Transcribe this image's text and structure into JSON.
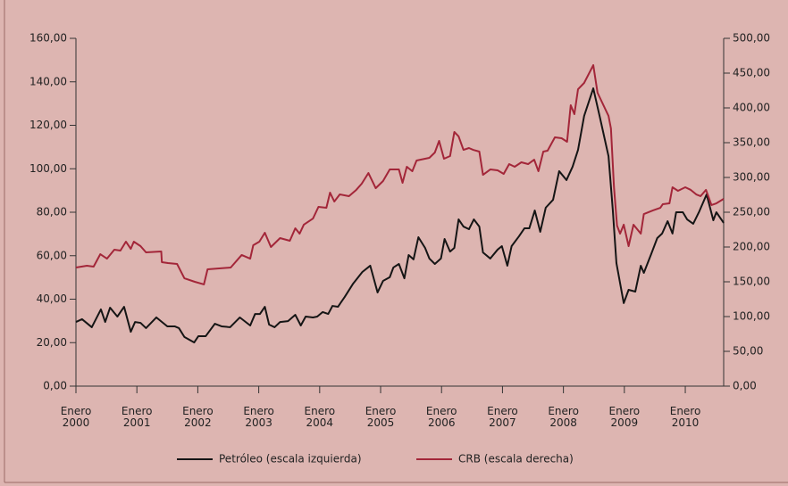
{
  "chart_data": {
    "type": "line",
    "xlim": [
      2000,
      2010.63
    ],
    "xticks": [
      {
        "value": 2000,
        "label": "Enero 2000"
      },
      {
        "value": 2001,
        "label": "Enero 2001"
      },
      {
        "value": 2002,
        "label": "Enero 2002"
      },
      {
        "value": 2003,
        "label": "Enero 2003"
      },
      {
        "value": 2004,
        "label": "Enero 2004"
      },
      {
        "value": 2005,
        "label": "Enero 2005"
      },
      {
        "value": 2006,
        "label": "Enero 2006"
      },
      {
        "value": 2007,
        "label": "Enero 2007"
      },
      {
        "value": 2008,
        "label": "Enero 2008"
      },
      {
        "value": 2009,
        "label": "Enero 2009"
      },
      {
        "value": 2010,
        "label": "Enero 2010"
      }
    ],
    "ylim": [
      0,
      160
    ],
    "yticks": [
      {
        "value": 0,
        "label": "0,00"
      },
      {
        "value": 20,
        "label": "20,00"
      },
      {
        "value": 40,
        "label": "40,00"
      },
      {
        "value": 60,
        "label": "60,00"
      },
      {
        "value": 80,
        "label": "80,00"
      },
      {
        "value": 100,
        "label": "100,00"
      },
      {
        "value": 120,
        "label": "120,00"
      },
      {
        "value": 140,
        "label": "140,00"
      },
      {
        "value": 160,
        "label": "160,00"
      }
    ],
    "y2lim": [
      0,
      500
    ],
    "y2ticks": [
      {
        "value": 0,
        "label": "0,00"
      },
      {
        "value": 50,
        "label": "50,00"
      },
      {
        "value": 100,
        "label": "100,00"
      },
      {
        "value": 150,
        "label": "150,00"
      },
      {
        "value": 200,
        "label": "200,00"
      },
      {
        "value": 250,
        "label": "250,00"
      },
      {
        "value": 300,
        "label": "300,00"
      },
      {
        "value": 350,
        "label": "350,00"
      },
      {
        "value": 400,
        "label": "400,00"
      },
      {
        "value": 450,
        "label": "450,00"
      },
      {
        "value": 500,
        "label": "500,00"
      }
    ],
    "legend": "bottom",
    "series": [
      {
        "name": "Petróleo (escala izquierda)",
        "color": "#151515",
        "axis": "y",
        "x": [
          2000.0,
          2000.1,
          2000.26,
          2000.41,
          2000.48,
          2000.56,
          2000.68,
          2000.79,
          2000.9,
          2000.97,
          2001.06,
          2001.15,
          2001.32,
          2001.5,
          2001.62,
          2001.69,
          2001.78,
          2001.94,
          2002.01,
          2002.13,
          2002.28,
          2002.39,
          2002.53,
          2002.69,
          2002.86,
          2002.94,
          2003.02,
          2003.1,
          2003.17,
          2003.26,
          2003.35,
          2003.48,
          2003.6,
          2003.69,
          2003.77,
          2003.89,
          2003.96,
          2004.05,
          2004.14,
          2004.21,
          2004.3,
          2004.41,
          2004.55,
          2004.7,
          2004.83,
          2004.95,
          2005.04,
          2005.15,
          2005.21,
          2005.3,
          2005.39,
          2005.46,
          2005.54,
          2005.62,
          2005.73,
          2005.8,
          2005.89,
          2005.99,
          2006.05,
          2006.14,
          2006.21,
          2006.28,
          2006.36,
          2006.45,
          2006.53,
          2006.62,
          2006.68,
          2006.8,
          2006.92,
          2006.99,
          2007.08,
          2007.15,
          2007.27,
          2007.36,
          2007.44,
          2007.53,
          2007.62,
          2007.71,
          2007.83,
          2007.93,
          2008.05,
          2008.15,
          2008.24,
          2008.34,
          2008.49,
          2008.6,
          2008.74,
          2008.81,
          2008.87,
          2008.99,
          2009.07,
          2009.18,
          2009.27,
          2009.32,
          2009.44,
          2009.54,
          2009.62,
          2009.71,
          2009.79,
          2009.85,
          2009.96,
          2010.03,
          2010.13,
          2010.23,
          2010.35,
          2010.46,
          2010.51,
          2010.63
        ],
        "values": [
          29.5,
          30.8,
          27.1,
          35.3,
          29.5,
          36.1,
          32.0,
          36.5,
          25.0,
          29.5,
          29.1,
          26.7,
          31.6,
          27.5,
          27.5,
          26.7,
          22.6,
          20.1,
          23.0,
          23.0,
          28.7,
          27.5,
          27.1,
          31.6,
          27.9,
          33.2,
          33.2,
          36.5,
          28.3,
          27.1,
          29.5,
          29.9,
          32.8,
          27.9,
          32.0,
          31.6,
          32.0,
          34.1,
          33.2,
          36.9,
          36.5,
          41.0,
          47.2,
          52.5,
          55.4,
          43.1,
          48.4,
          50.1,
          54.6,
          56.2,
          49.6,
          60.3,
          58.3,
          68.5,
          63.6,
          58.7,
          56.2,
          58.7,
          67.7,
          61.9,
          63.6,
          76.7,
          73.4,
          72.2,
          76.7,
          73.4,
          61.5,
          58.7,
          62.8,
          64.4,
          55.4,
          64.4,
          68.9,
          72.6,
          72.6,
          80.8,
          71.0,
          82.1,
          85.7,
          98.9,
          94.8,
          100.9,
          108.7,
          124.3,
          137.0,
          123.5,
          105.8,
          81.2,
          56.6,
          38.2,
          44.3,
          43.5,
          55.4,
          52.1,
          60.7,
          68.1,
          70.2,
          75.9,
          70.2,
          80.0,
          80.0,
          76.7,
          74.7,
          80.4,
          88.2,
          76.3,
          80.0,
          75.1
        ]
      },
      {
        "name": "CRB (escala derecha)",
        "color": "#a32639",
        "axis": "y2",
        "x": [
          2000.0,
          2000.18,
          2000.29,
          2000.4,
          2000.51,
          2000.63,
          2000.73,
          2000.82,
          2000.9,
          2000.95,
          2001.06,
          2001.15,
          2001.4,
          2001.41,
          2001.51,
          2001.66,
          2001.78,
          2001.95,
          2002.1,
          2002.16,
          2002.54,
          2002.72,
          2002.86,
          2002.91,
          2003.01,
          2003.1,
          2003.2,
          2003.35,
          2003.51,
          2003.6,
          2003.67,
          2003.74,
          2003.89,
          2003.98,
          2004.11,
          2004.17,
          2004.24,
          2004.33,
          2004.48,
          2004.6,
          2004.69,
          2004.8,
          2004.92,
          2005.04,
          2005.15,
          2005.3,
          2005.36,
          2005.43,
          2005.52,
          2005.59,
          2005.8,
          2005.89,
          2005.96,
          2006.04,
          2006.14,
          2006.21,
          2006.28,
          2006.36,
          2006.45,
          2006.52,
          2006.62,
          2006.68,
          2006.8,
          2006.92,
          2007.02,
          2007.11,
          2007.2,
          2007.31,
          2007.42,
          2007.52,
          2007.59,
          2007.67,
          2007.74,
          2007.86,
          2007.97,
          2008.06,
          2008.12,
          2008.18,
          2008.24,
          2008.34,
          2008.49,
          2008.56,
          2008.74,
          2008.78,
          2008.83,
          2008.88,
          2008.93,
          2008.99,
          2009.07,
          2009.15,
          2009.27,
          2009.32,
          2009.47,
          2009.59,
          2009.63,
          2009.74,
          2009.79,
          2009.88,
          2010.0,
          2010.09,
          2010.18,
          2010.25,
          2010.34,
          2010.43,
          2010.51,
          2010.63
        ],
        "values": [
          170.5,
          173.1,
          171.8,
          189.7,
          183.3,
          196.2,
          194.9,
          207.7,
          197.4,
          207.7,
          201.3,
          192.3,
          193.6,
          178.2,
          176.9,
          175.6,
          155.1,
          150.0,
          146.2,
          167.9,
          170.5,
          188.5,
          183.3,
          202.6,
          207.7,
          220.5,
          200.0,
          212.8,
          209.0,
          226.9,
          219.2,
          232.1,
          241.0,
          257.7,
          256.4,
          278.2,
          265.4,
          275.6,
          273.1,
          282.1,
          291.0,
          306.4,
          284.6,
          294.9,
          311.5,
          311.5,
          292.3,
          315.4,
          309.0,
          324.4,
          328.2,
          335.9,
          352.6,
          326.9,
          330.8,
          365.4,
          359.0,
          339.7,
          342.3,
          339.7,
          337.2,
          303.8,
          311.5,
          310.3,
          305.1,
          319.2,
          315.4,
          321.8,
          319.2,
          325.6,
          309.0,
          337.2,
          338.5,
          357.7,
          356.4,
          351.3,
          403.8,
          391.0,
          426.9,
          435.9,
          461.5,
          421.8,
          388.5,
          370.5,
          285.9,
          230.8,
          219.2,
          232.1,
          201.3,
          232.1,
          219.2,
          247.4,
          252.6,
          256.4,
          261.5,
          262.8,
          285.9,
          280.8,
          285.9,
          282.1,
          275.6,
          273.1,
          282.1,
          260.3,
          262.8,
          269.2
        ]
      }
    ]
  }
}
